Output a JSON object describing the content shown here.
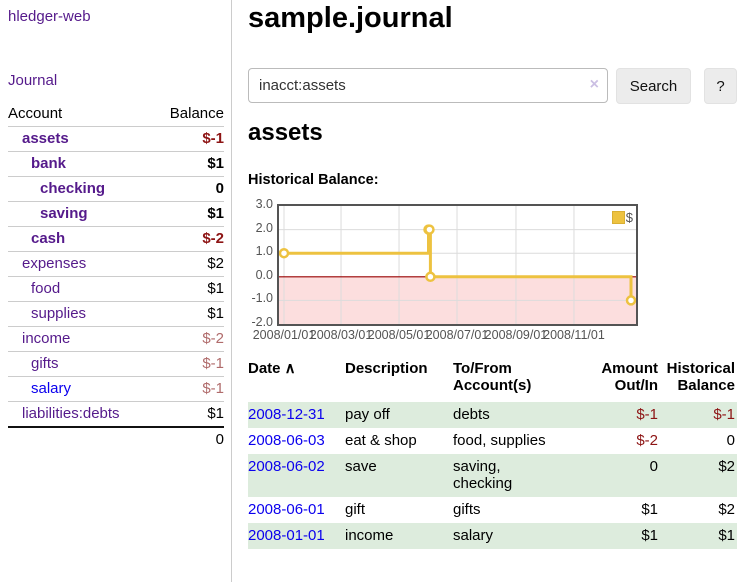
{
  "app": {
    "brand": "hledger-web"
  },
  "nav": {
    "journal": "Journal"
  },
  "colors": {
    "link_purple": "#551a8b",
    "link_blue": "#0b00ee",
    "negative": "#8d1414",
    "negative_soft": "#b06b6b",
    "row_green": "#ddecdd",
    "chart_line": "#edc240",
    "chart_negative_region": "#fcdede",
    "chart_zero_line": "#990000",
    "chart_border": "#545454",
    "chart_grid": "#dcdcdc"
  },
  "sidebar": {
    "account_header": "Account",
    "balance_header": "Balance",
    "rows": [
      {
        "name": "assets",
        "balance": "$-1",
        "indent": 1,
        "bold": true,
        "link_tone": "purple",
        "balance_tone": "neg"
      },
      {
        "name": "bank",
        "balance": "$1",
        "indent": 2,
        "bold": true,
        "link_tone": "purple",
        "balance_tone": "normal"
      },
      {
        "name": "checking",
        "balance": "0",
        "indent": 3,
        "bold": true,
        "link_tone": "purple",
        "balance_tone": "normal"
      },
      {
        "name": "saving",
        "balance": "$1",
        "indent": 3,
        "bold": true,
        "link_tone": "purple",
        "balance_tone": "normal"
      },
      {
        "name": "cash",
        "balance": "$-2",
        "indent": 2,
        "bold": true,
        "link_tone": "purple",
        "balance_tone": "neg"
      },
      {
        "name": "expenses",
        "balance": "$2",
        "indent": 1,
        "bold": false,
        "link_tone": "purple",
        "balance_tone": "normal"
      },
      {
        "name": "food",
        "balance": "$1",
        "indent": 2,
        "bold": false,
        "link_tone": "purple",
        "balance_tone": "normal"
      },
      {
        "name": "supplies",
        "balance": "$1",
        "indent": 2,
        "bold": false,
        "link_tone": "purple",
        "balance_tone": "normal"
      },
      {
        "name": "income",
        "balance": "$-2",
        "indent": 1,
        "bold": false,
        "link_tone": "purple",
        "balance_tone": "negsoft"
      },
      {
        "name": "gifts",
        "balance": "$-1",
        "indent": 2,
        "bold": false,
        "link_tone": "purple",
        "balance_tone": "negsoft"
      },
      {
        "name": "salary",
        "balance": "$-1",
        "indent": 2,
        "bold": false,
        "link_tone": "blue",
        "balance_tone": "negsoft"
      },
      {
        "name": "liabilities:debts",
        "balance": "$1",
        "indent": 1,
        "bold": false,
        "link_tone": "purple",
        "balance_tone": "normal"
      }
    ],
    "total": "0"
  },
  "main": {
    "title": "sample.journal",
    "search": {
      "value": "inacct:assets",
      "clear_icon": "×",
      "search_button": "Search",
      "help_button": "?"
    },
    "account_heading": "assets",
    "chart_label": "Historical Balance:"
  },
  "chart_data": {
    "type": "line",
    "interpolation": "step",
    "title": "Historical Balance",
    "series": [
      {
        "name": "$",
        "points": [
          [
            "2008-01-01",
            1
          ],
          [
            "2008-06-01",
            2
          ],
          [
            "2008-06-02",
            2
          ],
          [
            "2008-06-03",
            0
          ],
          [
            "2008-12-31",
            -1
          ]
        ]
      }
    ],
    "x_range": [
      "2008-01-01",
      "2008-12-31"
    ],
    "ylim": [
      -2.0,
      3.0
    ],
    "yticks": [
      3.0,
      2.0,
      1.0,
      0.0,
      -1.0,
      -2.0
    ],
    "xticks": [
      "2008/01/01",
      "2008/03/01",
      "2008/05/01",
      "2008/07/01",
      "2008/09/01",
      "2008/11/01"
    ],
    "legend": {
      "position": "top-right",
      "label": "$"
    },
    "grid": true,
    "negative_region_shaded": true
  },
  "register": {
    "sort_icon": "∧",
    "columns": [
      {
        "lines": [
          "Date"
        ],
        "align": "left",
        "sortable": true
      },
      {
        "lines": [
          "Description"
        ],
        "align": "left",
        "sortable": false
      },
      {
        "lines": [
          "To/From",
          "Account(s)"
        ],
        "align": "left",
        "sortable": false
      },
      {
        "lines": [
          "Amount",
          "Out/In"
        ],
        "align": "right",
        "sortable": false
      },
      {
        "lines": [
          "Historical",
          "Balance"
        ],
        "align": "right",
        "sortable": false
      }
    ],
    "rows": [
      {
        "date": "2008-12-31",
        "description": "pay off",
        "accounts": [
          "debts"
        ],
        "amount": "$-1",
        "amount_tone": "neg",
        "balance": "$-1",
        "balance_tone": "neg",
        "shaded": true
      },
      {
        "date": "2008-06-03",
        "description": "eat & shop",
        "accounts": [
          "food, supplies"
        ],
        "amount": "$-2",
        "amount_tone": "neg",
        "balance": "0",
        "balance_tone": "normal",
        "shaded": false
      },
      {
        "date": "2008-06-02",
        "description": "save",
        "accounts": [
          "saving,",
          "checking"
        ],
        "amount": "0",
        "amount_tone": "normal",
        "balance": "$2",
        "balance_tone": "normal",
        "shaded": true
      },
      {
        "date": "2008-06-01",
        "description": "gift",
        "accounts": [
          "gifts"
        ],
        "amount": "$1",
        "amount_tone": "normal",
        "balance": "$2",
        "balance_tone": "normal",
        "shaded": false
      },
      {
        "date": "2008-01-01",
        "description": "income",
        "accounts": [
          "salary"
        ],
        "amount": "$1",
        "amount_tone": "normal",
        "balance": "$1",
        "balance_tone": "normal",
        "shaded": true
      }
    ]
  }
}
